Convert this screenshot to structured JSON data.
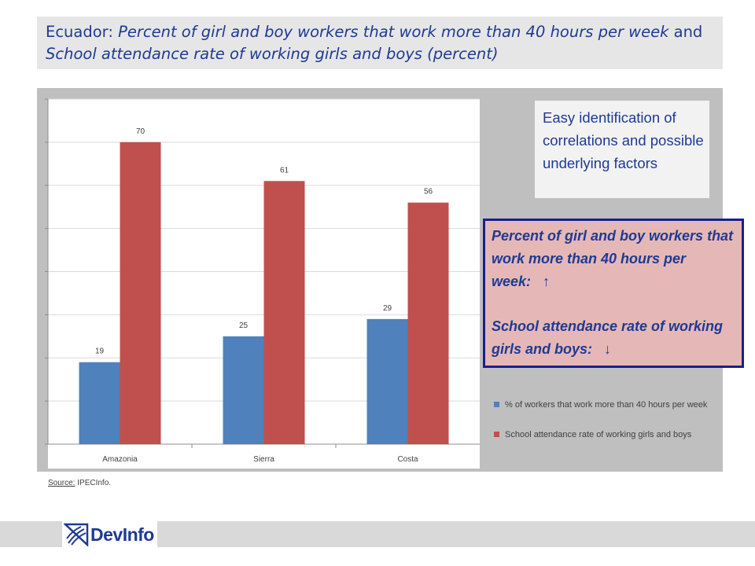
{
  "title": {
    "prefix": "Ecuador: ",
    "italic1": "Percent of girl and boy workers that work more than 40 hours per week",
    "connector": " and ",
    "italic2": "School attendance rate of working girls and boys (percent)"
  },
  "callout_gray": "Easy identification of correlations and possible underlying factors",
  "callout_pink": {
    "line1": "Percent of girl and boy workers that work more than 40 hours per week:",
    "arrow1": "↑",
    "line2": "School attendance rate of working girls and boys:",
    "arrow2": "↓"
  },
  "source": {
    "label": "Source:",
    "text": " IPECInfo."
  },
  "logo": {
    "text": "DevInfo"
  },
  "chart_data": {
    "type": "bar",
    "categories": [
      "Amazonia",
      "Sierra",
      "Costa"
    ],
    "series": [
      {
        "name": "% of workers that work more than 40 hours per week",
        "values": [
          19,
          25,
          29
        ],
        "color": "#4f81bd"
      },
      {
        "name": "School attendance rate of working girls and boys",
        "values": [
          70,
          61,
          56
        ],
        "color": "#c0504d"
      }
    ],
    "ylim": [
      0,
      80
    ],
    "grid": true,
    "legend": "right"
  }
}
